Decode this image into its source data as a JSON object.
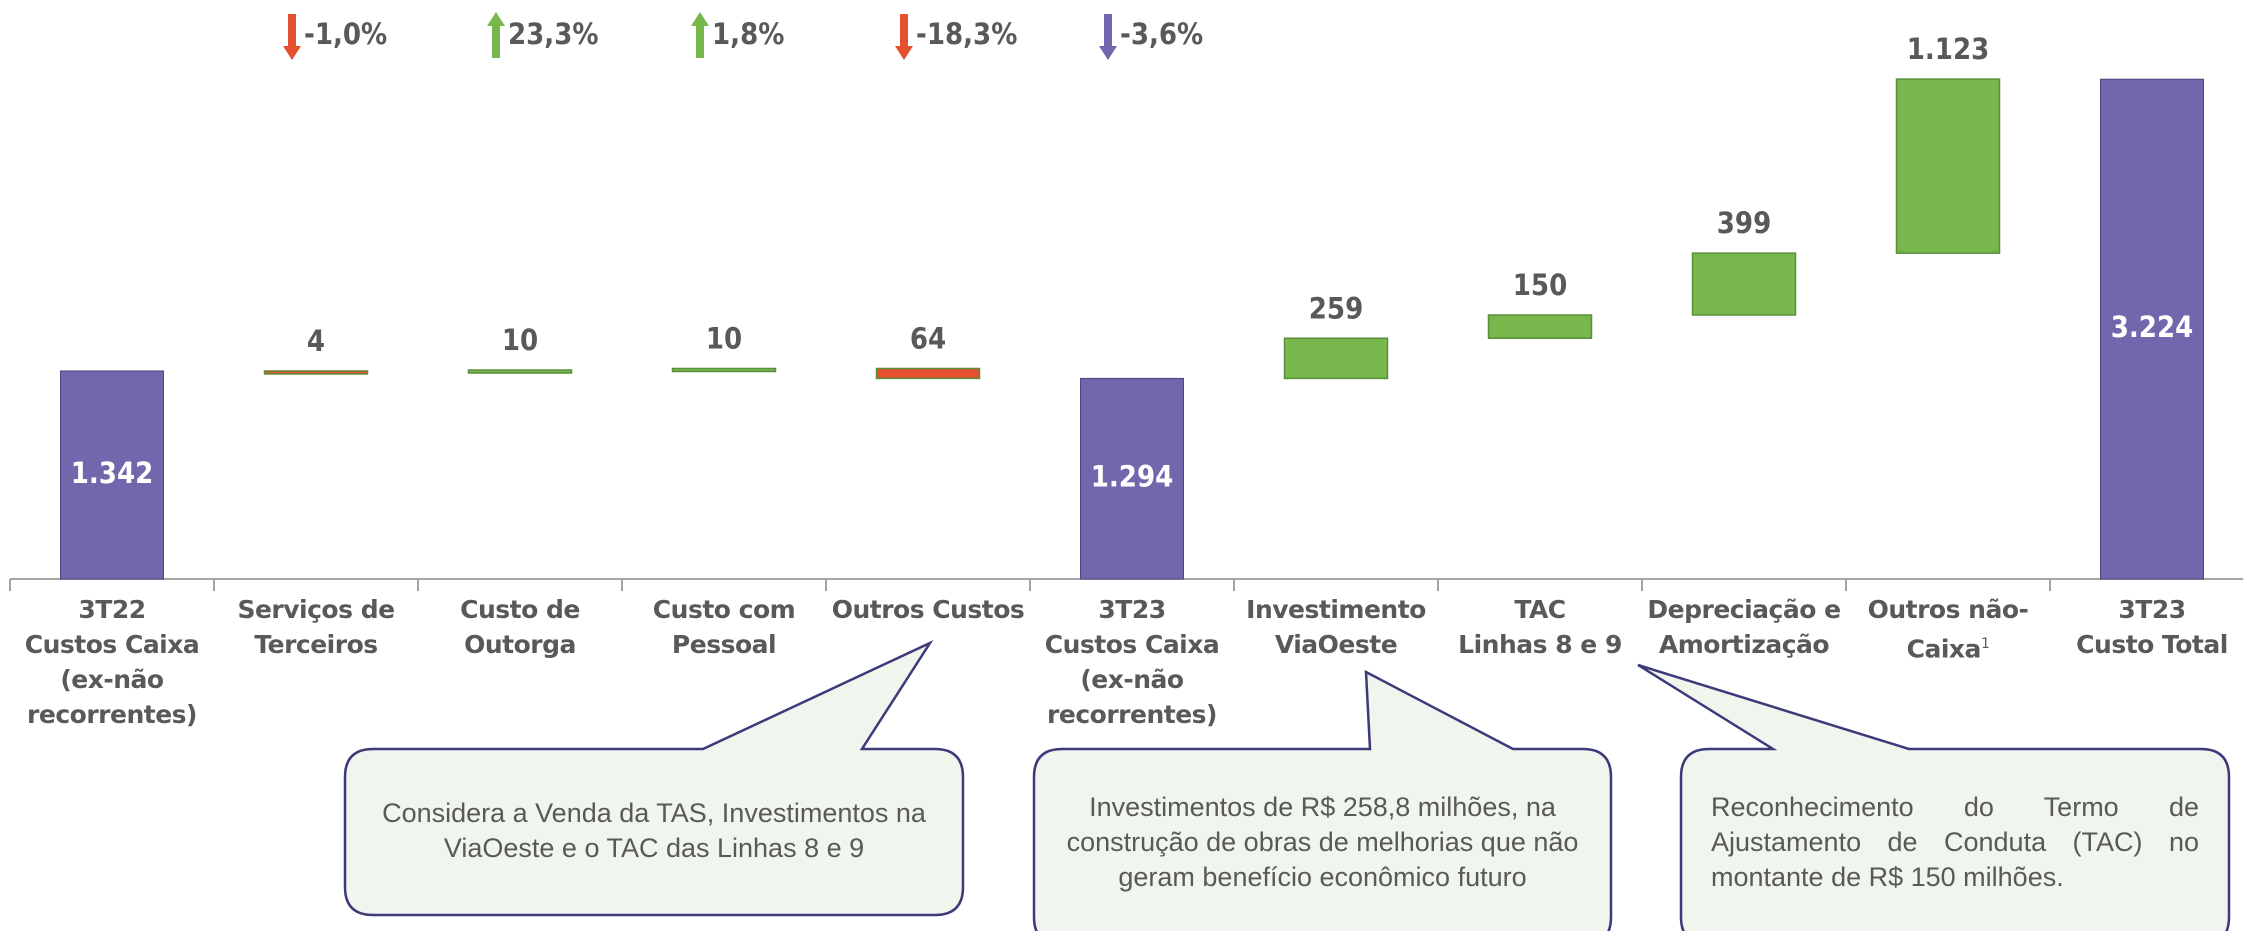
{
  "chart_data": {
    "type": "waterfall",
    "categories": [
      "3T22\nCustos Caixa\n(ex-não\nrecorrentes)",
      "Serviços de\nTerceiros",
      "Custo de\nOutorga",
      "Custo com\nPessoal",
      "Outros Custos",
      "3T23\nCustos Caixa\n(ex-não\nrecorrentes)",
      "Investimento\nViaOeste",
      "TAC\nLinhas 8 e 9",
      "Depreciação e\nAmortização",
      "Outros não-\nCaixa",
      "3T23\nCusto Total"
    ],
    "category_notes": [
      null,
      null,
      null,
      null,
      null,
      null,
      null,
      null,
      null,
      "1",
      null
    ],
    "values": [
      1342,
      4,
      10,
      10,
      64,
      1294,
      259,
      150,
      399,
      1123,
      3224
    ],
    "value_labels": [
      "1.342",
      "4",
      "10",
      "10",
      "64",
      "1.294",
      "259",
      "150",
      "399",
      "1.123",
      "3.224"
    ],
    "measure": [
      "absolute",
      "decrease",
      "increase",
      "increase",
      "decrease",
      "absolute",
      "increase",
      "increase",
      "increase",
      "increase",
      "absolute"
    ],
    "colors": {
      "absolute": "#7266ad",
      "increase": "#77b74c",
      "decrease": "#e5502e"
    },
    "change_labels": [
      null,
      "-1,0%",
      "23,3%",
      "1,8%",
      "-18,3%",
      "-3,6%",
      null,
      null,
      null,
      null,
      null
    ],
    "change_directions": [
      null,
      "down",
      "up",
      "up",
      "down",
      "down",
      null,
      null,
      null,
      null,
      null
    ],
    "change_colors": [
      null,
      "#e5502e",
      "#77b74c",
      "#77b74c",
      "#e5502e",
      "#7266ad",
      null,
      null,
      null,
      null,
      null
    ],
    "ylim": [
      0,
      3735
    ],
    "callouts": [
      {
        "text": "Considera a Venda da TAS, Investimentos na ViaOeste e o TAC das Linhas 8 e 9",
        "category": 4
      },
      {
        "text": "Investimentos de R$ 258,8 milhões, na construção de obras de melhorias que não geram benefício econômico futuro",
        "category": 6
      },
      {
        "text": "Reconhecimento do Termo de Ajustamento de Conduta (TAC) no montante de R$ 150 milhões.",
        "category": 7
      }
    ]
  }
}
